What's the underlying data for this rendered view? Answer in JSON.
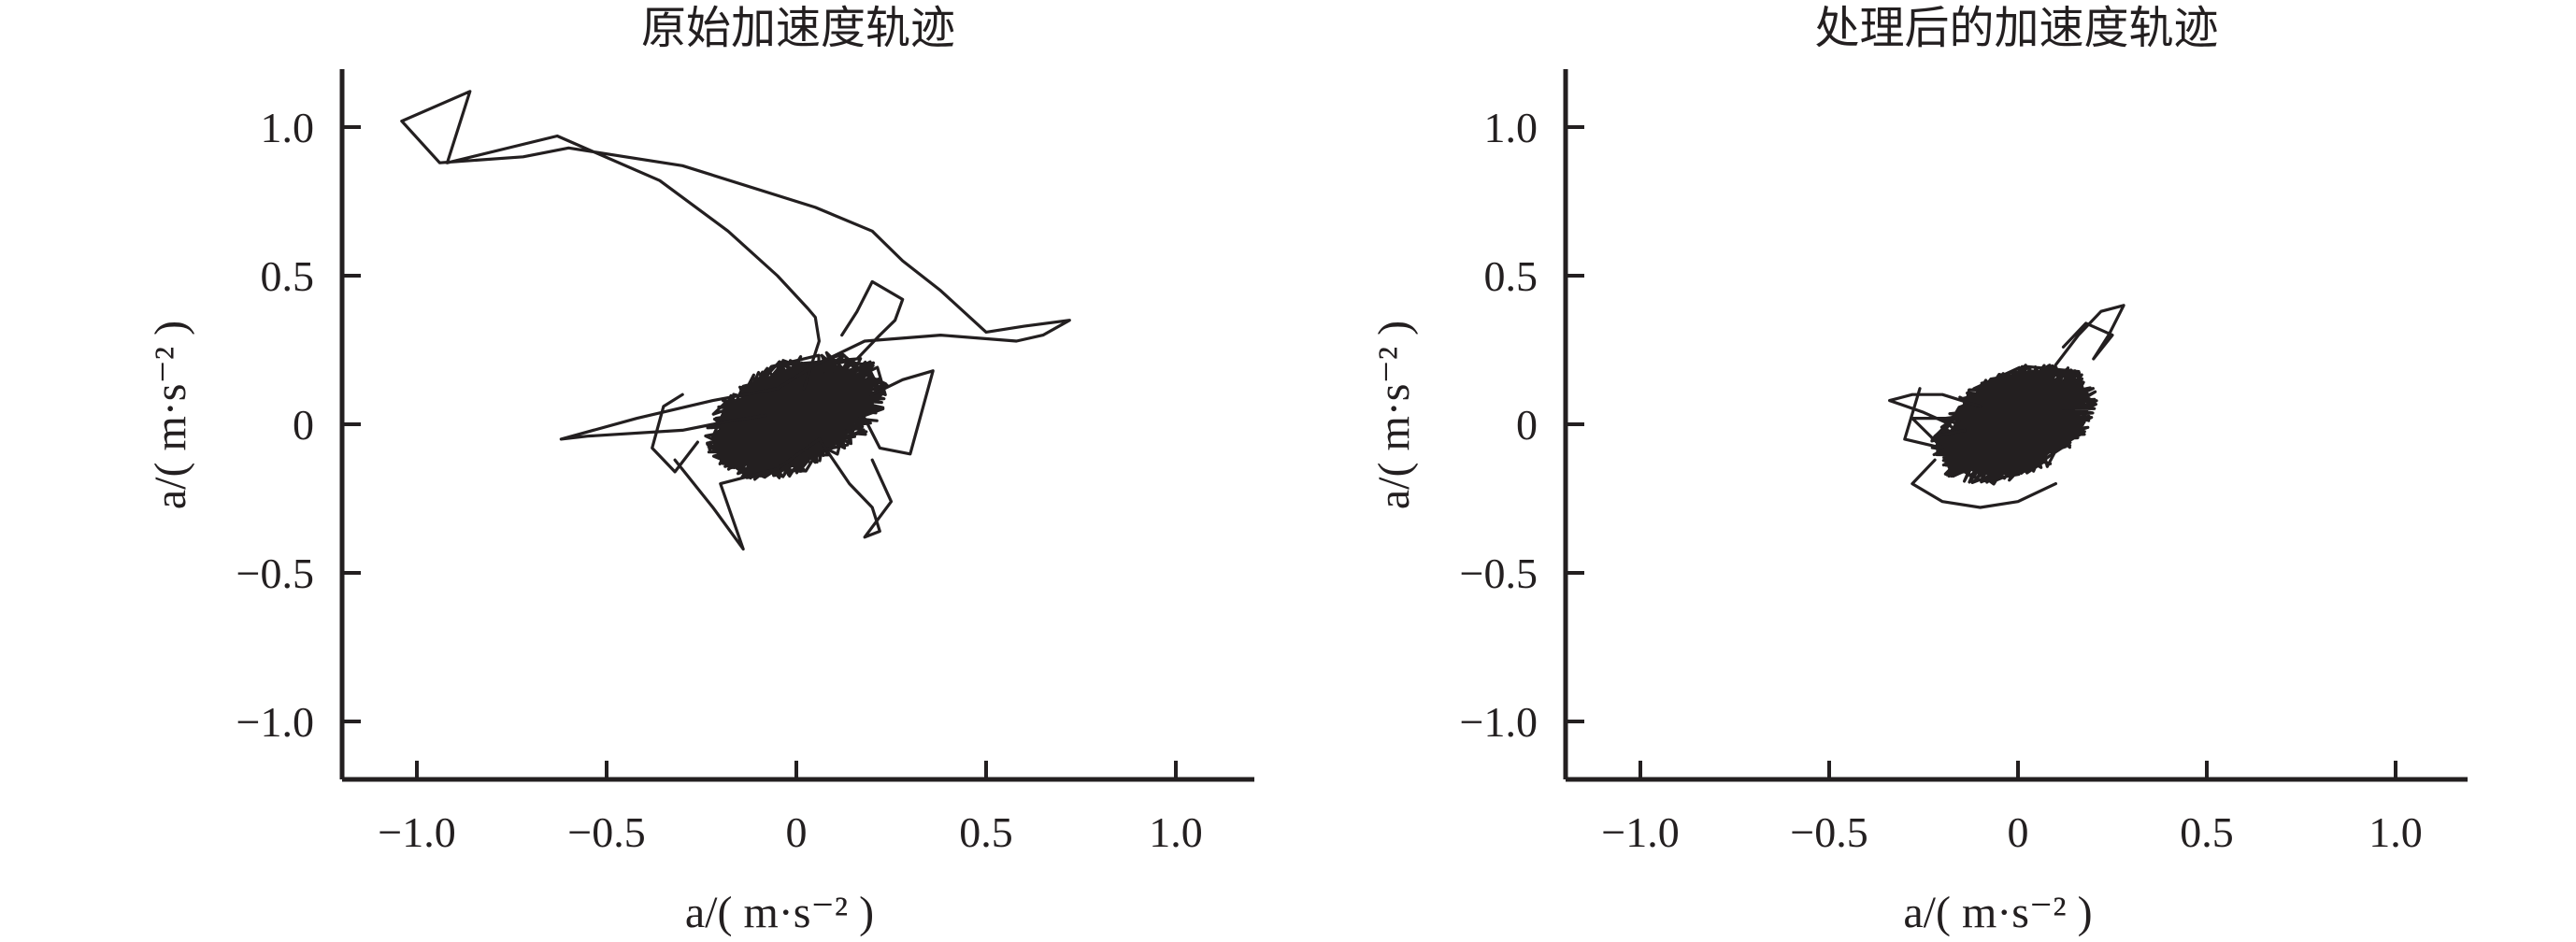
{
  "colors": {
    "ink": "#231f20",
    "background": "#ffffff"
  },
  "chart_data": [
    {
      "type": "line",
      "title": "原始加速度轨迹",
      "xlabel": "a/( m·s⁻² )",
      "ylabel": "a/( m·s⁻² )",
      "xlim": [
        -1.2,
        1.2
      ],
      "ylim": [
        -1.2,
        1.2
      ],
      "xticks": [
        -1.0,
        -0.5,
        0,
        0.5,
        1.0
      ],
      "yticks": [
        -1.0,
        -0.5,
        0,
        0.5,
        1.0
      ],
      "xtick_labels": [
        "−1.0",
        "−0.5",
        "0",
        "0.5",
        "1.0"
      ],
      "ytick_labels": [
        "−1.0",
        "−0.5",
        "0",
        "0.5",
        "1.0"
      ],
      "grid": false,
      "cluster": {
        "cx": 0.0,
        "cy": 0.03,
        "rx": 0.24,
        "ry": 0.2
      },
      "series": [
        {
          "x": [
            0.02,
            0.04,
            0.06,
            0.05,
            0.03,
            -0.05,
            -0.18,
            -0.36,
            -0.63,
            -0.92,
            -0.86,
            -1.04,
            -0.94,
            -0.72,
            -0.6,
            -0.3,
            0.05,
            0.2,
            0.28,
            0.38,
            0.5,
            0.6,
            0.72,
            0.65,
            0.58,
            0.38,
            0.18,
            0.05,
            -0.05,
            -0.22,
            -0.42,
            -0.62,
            -0.55,
            -0.3,
            -0.18,
            -0.08
          ],
          "y": [
            0.12,
            0.2,
            0.28,
            0.36,
            0.39,
            0.5,
            0.65,
            0.82,
            0.97,
            0.88,
            1.12,
            1.02,
            0.88,
            0.9,
            0.93,
            0.87,
            0.73,
            0.65,
            0.55,
            0.45,
            0.31,
            0.33,
            0.35,
            0.3,
            0.28,
            0.3,
            0.28,
            0.2,
            0.12,
            0.08,
            0.02,
            -0.05,
            -0.04,
            -0.02,
            0.01,
            0.03
          ]
        },
        {
          "x": [
            -0.32,
            -0.22,
            -0.14,
            -0.2,
            -0.05,
            0.06,
            0.14,
            0.2,
            0.22,
            0.18,
            0.25,
            0.2
          ],
          "y": [
            -0.12,
            -0.28,
            -0.42,
            -0.2,
            -0.15,
            -0.05,
            -0.2,
            -0.28,
            -0.36,
            -0.38,
            -0.26,
            -0.12
          ]
        },
        {
          "x": [
            0.15,
            0.2,
            0.28,
            0.36,
            0.3,
            0.22,
            0.18
          ],
          "y": [
            -0.02,
            0.1,
            0.15,
            0.18,
            -0.1,
            -0.08,
            0.02
          ]
        },
        {
          "x": [
            0.12,
            0.16,
            0.2,
            0.28,
            0.26,
            0.22,
            0.16
          ],
          "y": [
            0.3,
            0.38,
            0.48,
            0.42,
            0.35,
            0.3,
            0.22
          ]
        },
        {
          "x": [
            -0.3,
            -0.35,
            -0.38,
            -0.32,
            -0.26
          ],
          "y": [
            0.1,
            0.06,
            -0.08,
            -0.16,
            -0.06
          ]
        }
      ]
    },
    {
      "type": "line",
      "title": "处理后的加速度轨迹",
      "xlabel": "a/( m·s⁻² )",
      "ylabel": "a/( m·s⁻² )",
      "xlim": [
        -1.2,
        1.2
      ],
      "ylim": [
        -1.2,
        1.2
      ],
      "xticks": [
        -1.0,
        -0.5,
        0,
        0.5,
        1.0
      ],
      "yticks": [
        -1.0,
        -0.5,
        0,
        0.5,
        1.0
      ],
      "xtick_labels": [
        "−1.0",
        "−0.5",
        "0",
        "0.5",
        "1.0"
      ],
      "ytick_labels": [
        "−1.0",
        "−0.5",
        "0",
        "0.5",
        "1.0"
      ],
      "grid": false,
      "cluster": {
        "cx": -0.01,
        "cy": 0.0,
        "rx": 0.22,
        "ry": 0.19
      },
      "series": [
        {
          "x": [
            0.1,
            0.16,
            0.22,
            0.28,
            0.24,
            0.2,
            0.25,
            0.18,
            0.12
          ],
          "y": [
            0.2,
            0.3,
            0.38,
            0.4,
            0.3,
            0.22,
            0.3,
            0.34,
            0.26
          ]
        },
        {
          "x": [
            -0.1,
            -0.2,
            -0.28,
            -0.34,
            -0.25,
            -0.18,
            -0.22,
            -0.14
          ],
          "y": [
            0.06,
            0.1,
            0.1,
            0.08,
            0.04,
            0.0,
            -0.04,
            -0.02
          ]
        },
        {
          "x": [
            -0.22,
            -0.28,
            -0.2,
            -0.1,
            0.0,
            0.1
          ],
          "y": [
            -0.12,
            -0.2,
            -0.26,
            -0.28,
            -0.26,
            -0.2
          ]
        },
        {
          "x": [
            -0.26,
            -0.3,
            -0.2,
            -0.28,
            -0.16
          ],
          "y": [
            0.12,
            -0.05,
            -0.08,
            0.02,
            0.02
          ]
        }
      ]
    }
  ]
}
